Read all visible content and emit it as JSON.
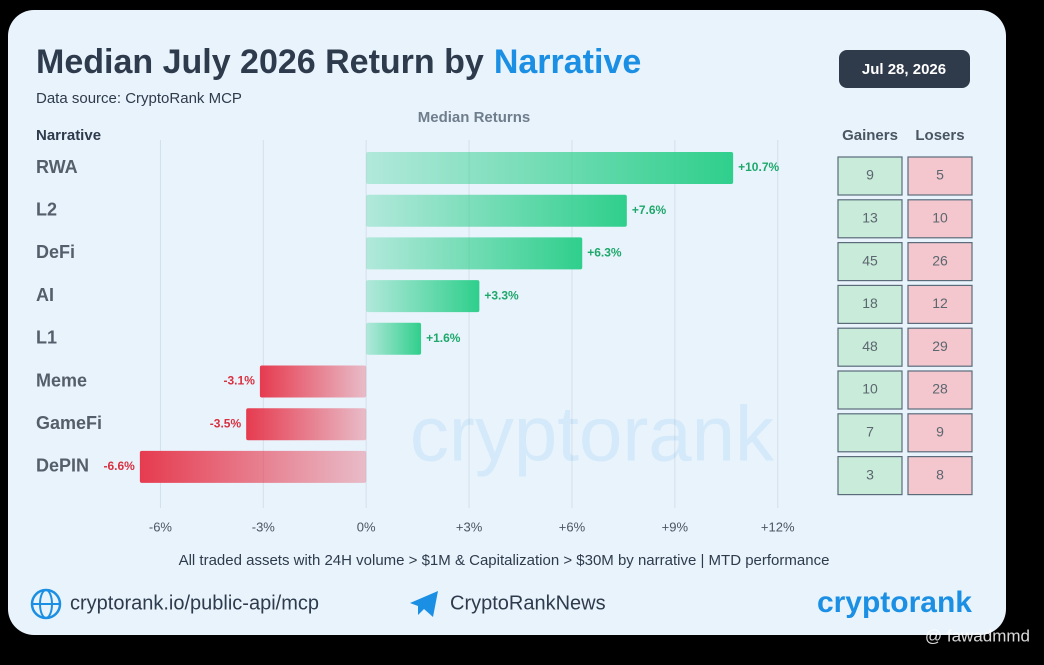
{
  "chart_data": {
    "type": "bar",
    "orientation": "horizontal",
    "title": "Median July 2026 Return by",
    "title_highlight": "Narrative",
    "subtitle": "Data source: CryptoRank MCP",
    "date": "Jul 28, 2026",
    "category_header": "Narrative",
    "value_header": "Median Returns",
    "categories": [
      "RWA",
      "L2",
      "DeFi",
      "AI",
      "L1",
      "Meme",
      "GameFi",
      "DePIN"
    ],
    "values": [
      10.7,
      7.6,
      6.3,
      3.3,
      1.6,
      -3.1,
      -3.5,
      -6.6
    ],
    "value_labels": [
      "+10.7%",
      "+7.6%",
      "+6.3%",
      "+3.3%",
      "+1.6%",
      "-3.1%",
      "-3.5%",
      "-6.6%"
    ],
    "positive_color": "#2fcf8c",
    "negative_color": "#e63b4f",
    "xlim": [
      -6.8,
      12.3
    ],
    "xticks": [
      {
        "value": -6,
        "label": "-6%"
      },
      {
        "value": -3,
        "label": "-3%"
      },
      {
        "value": 0,
        "label": "0%"
      },
      {
        "value": 3,
        "label": "+3%"
      },
      {
        "value": 6,
        "label": "+6%"
      },
      {
        "value": 9,
        "label": "+9%"
      },
      {
        "value": 12,
        "label": "+12%"
      }
    ],
    "grid": true,
    "gainers_header": "Gainers",
    "losers_header": "Losers",
    "gainers": [
      9,
      13,
      45,
      18,
      48,
      10,
      7,
      3
    ],
    "losers": [
      5,
      10,
      26,
      12,
      29,
      28,
      9,
      8
    ],
    "footnote": "All traded assets with 24H volume > $1M & Capitalization > $30M by narrative | MTD performance",
    "footer_link": "cryptorank.io/public-api/mcp",
    "footer_channel": "CryptoRankNews",
    "brand": "cryptorank",
    "watermark": "@ fawadmmd"
  }
}
